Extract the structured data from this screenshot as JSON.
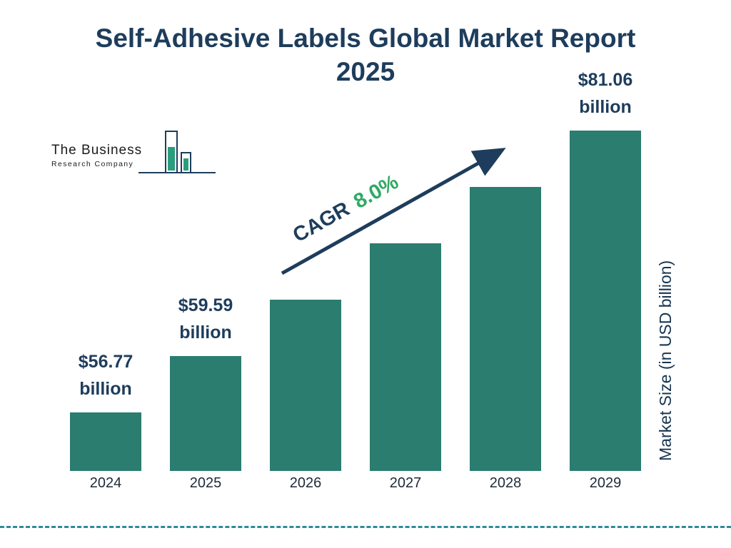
{
  "title": {
    "line1": "Self-Adhesive Labels Global Market Report",
    "line2": "2025"
  },
  "logo": {
    "line1": "The Business",
    "line2": "Research Company"
  },
  "cagr": {
    "label": "CAGR",
    "value": "8.0%"
  },
  "y_axis_label": "Market Size (in USD billion)",
  "colors": {
    "bar": "#2a7d6f",
    "title": "#1e3d5c",
    "cagr_value_green": "#2eaa63",
    "arrow": "#1e3d5c",
    "divider": "#2e8b99"
  },
  "chart_data": {
    "type": "bar",
    "title": "Self-Adhesive Labels Global Market Report 2025",
    "categories": [
      "2024",
      "2025",
      "2026",
      "2027",
      "2028",
      "2029"
    ],
    "values": [
      56.77,
      59.59,
      64.36,
      69.51,
      75.07,
      81.06
    ],
    "value_labels": [
      "$56.77 billion",
      "$59.59 billion",
      null,
      null,
      null,
      "$81.06 billion"
    ],
    "xlabel": "",
    "ylabel": "Market Size (in USD billion)",
    "annotations": [
      "CAGR 8.0%"
    ],
    "legend": "none",
    "grid": false,
    "bar_color": "#2a7d6f"
  }
}
